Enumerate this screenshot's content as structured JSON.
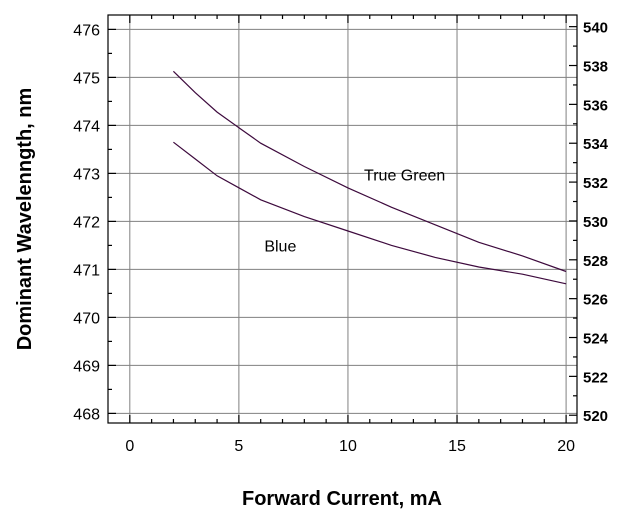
{
  "chart_data": {
    "type": "line",
    "xlabel": "Forward Current, mA",
    "ylabel": "Dominant Wavelenngth, nm",
    "xlim": [
      -1,
      20.5
    ],
    "ylim": [
      467.8,
      476.3
    ],
    "y2lim": [
      519.6,
      540.6
    ],
    "x_ticks": [
      0,
      5,
      10,
      15,
      20
    ],
    "y_ticks": [
      468,
      469,
      470,
      471,
      472,
      473,
      474,
      475,
      476
    ],
    "y2_ticks": [
      520,
      522,
      524,
      526,
      528,
      530,
      532,
      534,
      536,
      538,
      540
    ],
    "grid": true,
    "series": [
      {
        "name": "True Green",
        "axis": "right",
        "color": "#3d0a3d",
        "x": [
          2,
          3,
          4,
          5,
          6,
          8,
          10,
          12,
          14,
          16,
          18,
          20
        ],
        "y": [
          537.7,
          536.6,
          535.6,
          534.8,
          534.0,
          532.8,
          531.7,
          530.7,
          529.8,
          528.9,
          528.2,
          527.4
        ]
      },
      {
        "name": "Blue",
        "axis": "left",
        "color": "#3d0a3d",
        "x": [
          2,
          3,
          4,
          5,
          6,
          8,
          10,
          12,
          14,
          16,
          18,
          20
        ],
        "y": [
          473.65,
          473.3,
          472.95,
          472.7,
          472.45,
          472.1,
          471.8,
          471.5,
          471.25,
          471.05,
          470.9,
          470.7
        ]
      }
    ],
    "annotations": [
      {
        "text": "True Green",
        "x": 12.6,
        "y": 532.4,
        "axis": "right"
      },
      {
        "text": "Blue",
        "x": 6.9,
        "y": 471.5,
        "axis": "left"
      }
    ]
  }
}
